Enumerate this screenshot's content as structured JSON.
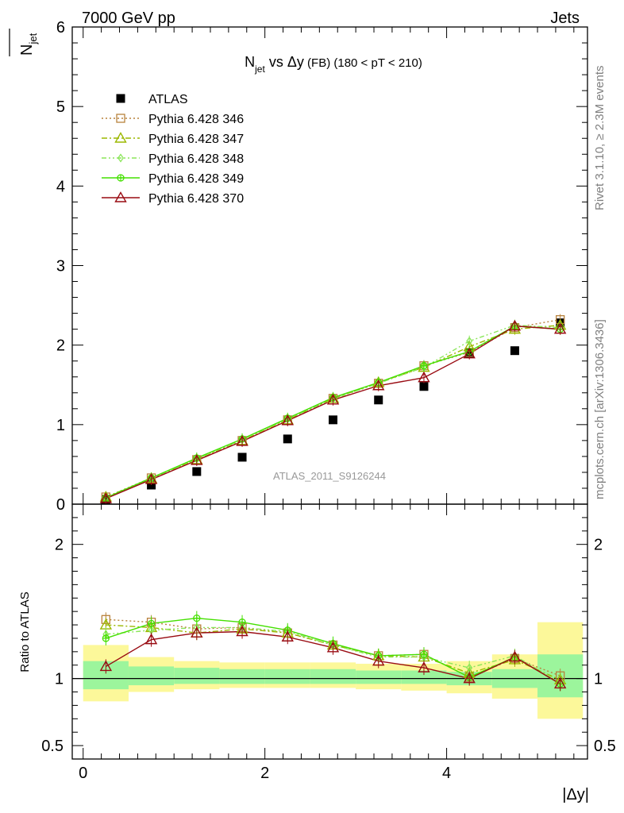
{
  "header": {
    "left": "7000 GeV pp",
    "right": "Jets"
  },
  "side_labels": {
    "rivet": "Rivet 3.1.10, ≥ 2.3M events",
    "mcplots": "mcplots.cern.ch [arXiv:1306.3436]"
  },
  "title": {
    "n": "N",
    "n_sub": "jet",
    "mid": " vs ",
    "dy": "Δy",
    "fb": " (FB)",
    "range": " (180 < pT < 210)"
  },
  "ylabel_top": {
    "n": "N",
    "sub": "jet"
  },
  "ylabel_bottom": "Ratio to ATLAS",
  "xlabel": "|Δy|",
  "watermark": "ATLAS_2011_S9126244",
  "chart_data": [
    {
      "type": "scatter",
      "panel": "main",
      "ylim": [
        0,
        6
      ],
      "xlim": [
        -0.12,
        5.55
      ],
      "y_ticks": [
        0,
        1,
        2,
        3,
        4,
        5,
        6
      ],
      "y_tick_labels": [
        "0",
        "1",
        "2",
        "3",
        "4",
        "5",
        "6"
      ],
      "x": [
        0.25,
        0.75,
        1.25,
        1.75,
        2.25,
        2.75,
        3.25,
        3.75,
        4.25,
        4.75,
        5.25
      ],
      "series": [
        {
          "name": "ATLAS",
          "color": "#000000",
          "marker": "square-filled",
          "line": "none",
          "values": [
            0.06,
            0.24,
            0.41,
            0.59,
            0.82,
            1.06,
            1.31,
            1.48,
            1.9,
            1.93,
            2.28
          ]
        },
        {
          "name": "Pythia 6.428 346",
          "color": "#b8823c",
          "marker": "square-open",
          "line": "dotted",
          "values": [
            0.09,
            0.33,
            0.56,
            0.8,
            1.06,
            1.33,
            1.52,
            1.74,
            1.91,
            2.22,
            2.32
          ]
        },
        {
          "name": "Pythia 6.428 347",
          "color": "#9cb800",
          "marker": "triangle-open",
          "line": "dashdot",
          "values": [
            0.09,
            0.32,
            0.56,
            0.8,
            1.06,
            1.33,
            1.53,
            1.72,
            1.98,
            2.2,
            2.25
          ]
        },
        {
          "name": "Pythia 6.428 348",
          "color": "#8be65a",
          "marker": "diamond-open",
          "line": "dashdotdot",
          "values": [
            0.08,
            0.32,
            0.57,
            0.81,
            1.07,
            1.32,
            1.52,
            1.72,
            2.05,
            2.25,
            2.22
          ]
        },
        {
          "name": "Pythia 6.428 349",
          "color": "#44e000",
          "marker": "circle-cross",
          "line": "solid",
          "values": [
            0.08,
            0.33,
            0.58,
            0.82,
            1.08,
            1.34,
            1.53,
            1.74,
            1.92,
            2.24,
            2.2
          ]
        },
        {
          "name": "Pythia 6.428 370",
          "color": "#990b12",
          "marker": "triangle-open",
          "line": "solid",
          "values": [
            0.07,
            0.31,
            0.55,
            0.79,
            1.05,
            1.31,
            1.49,
            1.59,
            1.89,
            2.24,
            2.2
          ]
        }
      ],
      "legend_position": "top-left"
    },
    {
      "type": "scatter",
      "panel": "ratio",
      "ylim": [
        0.4,
        2.3
      ],
      "xlim": [
        -0.12,
        5.55
      ],
      "y_ticks": [
        0.5,
        1,
        2
      ],
      "y_tick_labels": [
        "0.5",
        "1",
        "2"
      ],
      "x_ticks": [
        0,
        2,
        4
      ],
      "x_tick_labels": [
        "0",
        "2",
        "4"
      ],
      "x": [
        0.25,
        0.75,
        1.25,
        1.75,
        2.25,
        2.75,
        3.25,
        3.75,
        4.25,
        4.75,
        5.25
      ],
      "bands": {
        "edges": [
          0,
          0.5,
          1.0,
          1.5,
          2.0,
          2.5,
          3.0,
          3.5,
          4.0,
          4.5,
          5.0,
          5.5
        ],
        "stat": [
          [
            0.92,
            1.13
          ],
          [
            0.95,
            1.09
          ],
          [
            0.96,
            1.08
          ],
          [
            0.96,
            1.07
          ],
          [
            0.96,
            1.07
          ],
          [
            0.96,
            1.07
          ],
          [
            0.96,
            1.06
          ],
          [
            0.96,
            1.06
          ],
          [
            0.95,
            1.05
          ],
          [
            0.93,
            1.07
          ],
          [
            0.86,
            1.18
          ]
        ],
        "total": [
          [
            0.83,
            1.25
          ],
          [
            0.9,
            1.16
          ],
          [
            0.92,
            1.13
          ],
          [
            0.93,
            1.12
          ],
          [
            0.93,
            1.12
          ],
          [
            0.93,
            1.12
          ],
          [
            0.92,
            1.11
          ],
          [
            0.91,
            1.11
          ],
          [
            0.89,
            1.13
          ],
          [
            0.85,
            1.18
          ],
          [
            0.7,
            1.42
          ]
        ],
        "stat_color": "#9cf59c",
        "total_color": "#fcf89a"
      },
      "series": [
        {
          "name": "Pythia 6.428 346",
          "values": [
            1.44,
            1.42,
            1.37,
            1.38,
            1.34,
            1.25,
            1.17,
            1.18,
            1.01,
            1.15,
            1.02
          ]
        },
        {
          "name": "Pythia 6.428 347",
          "values": [
            1.4,
            1.38,
            1.34,
            1.37,
            1.34,
            1.25,
            1.17,
            1.16,
            1.04,
            1.14,
            0.99
          ]
        },
        {
          "name": "Pythia 6.428 348",
          "values": [
            1.33,
            1.36,
            1.38,
            1.38,
            1.35,
            1.25,
            1.16,
            1.16,
            1.08,
            1.17,
            0.97
          ]
        },
        {
          "name": "Pythia 6.428 349",
          "values": [
            1.3,
            1.41,
            1.45,
            1.42,
            1.36,
            1.26,
            1.17,
            1.18,
            1.01,
            1.16,
            0.96
          ]
        },
        {
          "name": "Pythia 6.428 370",
          "values": [
            1.09,
            1.29,
            1.34,
            1.35,
            1.31,
            1.23,
            1.13,
            1.08,
            1.0,
            1.16,
            0.96
          ]
        }
      ]
    }
  ]
}
